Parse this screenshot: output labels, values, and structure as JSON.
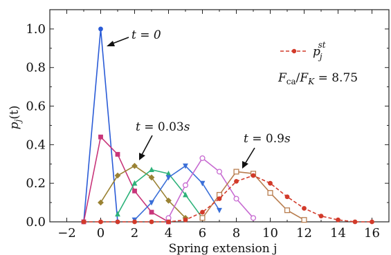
{
  "chart_data": {
    "type": "line",
    "xlabel": "Spring extension j",
    "ylabel": "p_j(t)",
    "ylabel_main": "p",
    "ylabel_sub": "j",
    "ylabel_tail": "(t)",
    "xlim": [
      -3,
      17
    ],
    "ylim": [
      0,
      1.1
    ],
    "x_ticks": [
      -2,
      0,
      2,
      4,
      6,
      8,
      10,
      12,
      14,
      16
    ],
    "y_ticks": [
      "0.0",
      "0.2",
      "0.4",
      "0.6",
      "0.8",
      "1.0"
    ],
    "grid": false,
    "colors": {
      "blue": "#2a5bd7",
      "pink": "#c8357a",
      "olive": "#9a8233",
      "green": "#2db27a",
      "blue2": "#3a6fd8",
      "purple": "#c76ad1",
      "brown": "#b87d4e",
      "red": "#d23a2a"
    },
    "series": [
      {
        "color_key": "blue",
        "marker": "circle",
        "x": [
          -1,
          0,
          1
        ],
        "y": [
          0.0,
          1.0,
          0.0
        ]
      },
      {
        "color_key": "pink",
        "marker": "square",
        "x": [
          -1,
          0,
          1,
          2,
          3,
          4
        ],
        "y": [
          0.0,
          0.44,
          0.35,
          0.16,
          0.05,
          0.0
        ]
      },
      {
        "color_key": "olive",
        "marker": "diamond",
        "x": [
          0,
          1,
          2,
          3,
          4,
          5
        ],
        "y": [
          0.1,
          0.24,
          0.29,
          0.23,
          0.11,
          0.02
        ]
      },
      {
        "color_key": "green",
        "marker": "triangle-up",
        "x": [
          1,
          2,
          3,
          4,
          5,
          6
        ],
        "y": [
          0.04,
          0.2,
          0.27,
          0.25,
          0.14,
          0.02
        ]
      },
      {
        "color_key": "blue2",
        "marker": "triangle-down",
        "x": [
          2,
          3,
          4,
          5,
          6,
          7
        ],
        "y": [
          0.01,
          0.1,
          0.23,
          0.29,
          0.2,
          0.06
        ]
      },
      {
        "color_key": "purple",
        "marker": "circle-open",
        "x": [
          4,
          5,
          6,
          7,
          8,
          9
        ],
        "y": [
          0.02,
          0.19,
          0.33,
          0.26,
          0.12,
          0.02
        ]
      },
      {
        "color_key": "brown",
        "marker": "square-open",
        "x": [
          6,
          7,
          8,
          9,
          10,
          11,
          12
        ],
        "y": [
          0.02,
          0.14,
          0.26,
          0.25,
          0.15,
          0.06,
          0.01
        ]
      },
      {
        "name": "p_j^st",
        "color_key": "red",
        "marker": "circle",
        "dashed": true,
        "x": [
          -1,
          0,
          1,
          2,
          3,
          4,
          5,
          6,
          7,
          8,
          9,
          10,
          11,
          12,
          13,
          14,
          15,
          16
        ],
        "y": [
          0.0,
          0.0,
          0.0,
          0.0,
          0.0,
          0.0,
          0.01,
          0.05,
          0.12,
          0.21,
          0.24,
          0.2,
          0.13,
          0.07,
          0.03,
          0.01,
          0.0,
          0.0
        ]
      }
    ],
    "legend": {
      "placement": "top-right",
      "label_main": "p",
      "label_sub": "j",
      "label_sup": "st"
    },
    "ratio_text": {
      "f1": "F",
      "s1": "ca",
      "sep": "/",
      "f2": "F",
      "s2": "K",
      "eq": " = 8.75"
    },
    "annotations": [
      {
        "id": "t0",
        "text": "t = 0"
      },
      {
        "id": "t003",
        "text_italic": "t",
        "text_eq": " = 0.03",
        "text_unit": "s"
      },
      {
        "id": "t09",
        "text_italic": "t",
        "text_eq": " = 0.9",
        "text_unit": "s"
      }
    ]
  }
}
